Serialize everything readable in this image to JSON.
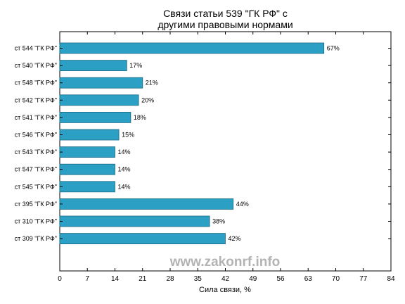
{
  "chart_data": {
    "type": "bar",
    "orientation": "horizontal",
    "title": [
      "Связи статьи 539 \"ГК РФ\" с",
      "другими правовыми нормами"
    ],
    "xlabel": "Сила связи, %",
    "xlim": [
      0,
      84
    ],
    "xticks": [
      0,
      7,
      14,
      21,
      28,
      35,
      42,
      49,
      56,
      63,
      70,
      77,
      84
    ],
    "categories": [
      "ст 544 \"ГК РФ\"",
      "ст 540 \"ГК РФ\"",
      "ст 548 \"ГК РФ\"",
      "ст 542 \"ГК РФ\"",
      "ст 541 \"ГК РФ\"",
      "ст 546 \"ГК РФ\"",
      "ст 543 \"ГК РФ\"",
      "ст 547 \"ГК РФ\"",
      "ст 545 \"ГК РФ\"",
      "ст 395 \"ГК РФ\"",
      "ст 310 \"ГК РФ\"",
      "ст 309 \"ГК РФ\""
    ],
    "values": [
      67,
      17,
      21,
      20,
      18,
      15,
      14,
      14,
      14,
      44,
      38,
      42
    ],
    "value_labels": [
      "67%",
      "17%",
      "21%",
      "20%",
      "18%",
      "15%",
      "14%",
      "14%",
      "14%",
      "44%",
      "38%",
      "42%"
    ],
    "bar_color": "#2b9fc4",
    "bar_edge_color": "#1a6a85",
    "grid": false,
    "watermark": "www.zakonrf.info"
  }
}
